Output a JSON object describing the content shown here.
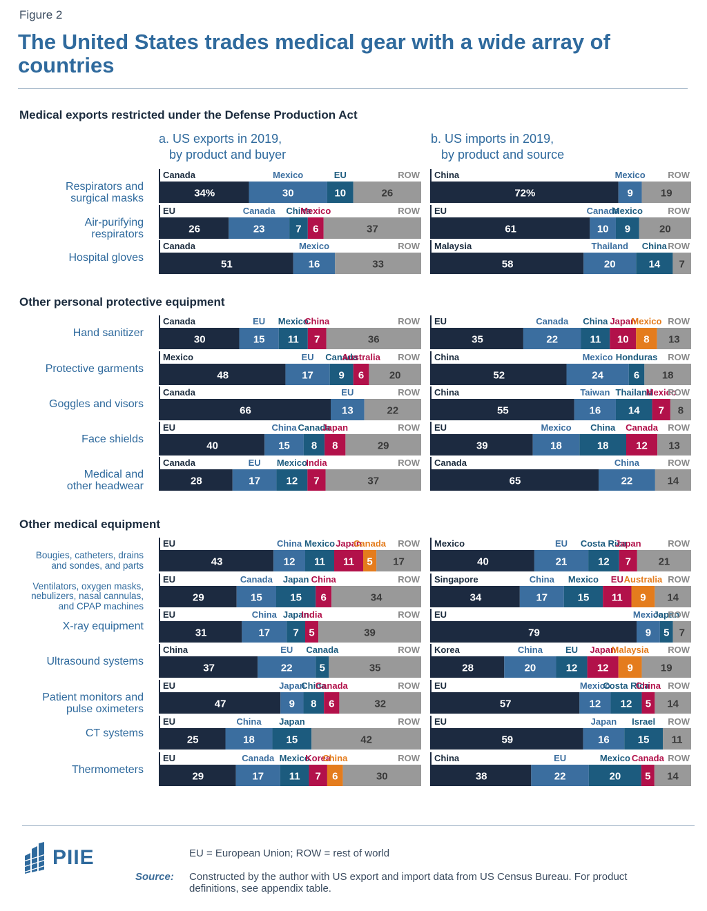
{
  "figure_label": "Figure 2",
  "title": "The United States trades medical gear with a wide array of countries",
  "note": "EU = European Union; ROW = rest of world",
  "source_label": "Source:",
  "source_text": "Constructed by the author with US export and import data from US Census Bureau. For product definitions, see appendix table.",
  "logo_text": "PIIE",
  "colors": {
    "navy": "#1c2a40",
    "blue": "#3b6e9f",
    "teal": "#1c5b7e",
    "crimson": "#b2114a",
    "orange": "#e47c1d",
    "gray": "#999999"
  },
  "chart_data": {
    "type": "bar",
    "orientation": "horizontal-stacked",
    "unit": "percent share",
    "panels": [
      {
        "title": "a. US exports in 2019,\n   by product and buyer"
      },
      {
        "title": "b. US imports in 2019,\n   by product and source"
      }
    ],
    "sections": [
      {
        "heading": "Medical exports restricted under the Defense Production Act",
        "rows": [
          {
            "label": "Respirators and\nsurgical masks",
            "exports": [
              {
                "c": "Canada",
                "v": 34,
                "t": "34%",
                "k": "navy"
              },
              {
                "c": "Mexico",
                "v": 30,
                "k": "blue"
              },
              {
                "c": "EU",
                "v": 10,
                "k": "teal"
              },
              {
                "c": "ROW",
                "v": 26,
                "k": "gray"
              }
            ],
            "imports": [
              {
                "c": "China",
                "v": 72,
                "t": "72%",
                "k": "navy"
              },
              {
                "c": "Mexico",
                "v": 9,
                "k": "blue"
              },
              {
                "c": "ROW",
                "v": 19,
                "k": "gray"
              }
            ]
          },
          {
            "label": "Air-purifying\nrespirators",
            "exports": [
              {
                "c": "EU",
                "v": 26,
                "k": "navy"
              },
              {
                "c": "Canada",
                "v": 23,
                "k": "blue"
              },
              {
                "c": "China",
                "v": 7,
                "k": "teal"
              },
              {
                "c": "Mexico",
                "v": 6,
                "k": "crimson"
              },
              {
                "c": "ROW",
                "v": 37,
                "k": "gray"
              }
            ],
            "imports": [
              {
                "c": "EU",
                "v": 61,
                "k": "navy"
              },
              {
                "c": "Canada",
                "v": 10,
                "k": "blue"
              },
              {
                "c": "Mexico",
                "v": 9,
                "k": "teal"
              },
              {
                "c": "ROW",
                "v": 20,
                "k": "gray"
              }
            ]
          },
          {
            "label": "Hospital gloves",
            "exports": [
              {
                "c": "Canada",
                "v": 51,
                "k": "navy"
              },
              {
                "c": "Mexico",
                "v": 16,
                "k": "blue"
              },
              {
                "c": "ROW",
                "v": 33,
                "k": "gray"
              }
            ],
            "imports": [
              {
                "c": "Malaysia",
                "v": 58,
                "k": "navy"
              },
              {
                "c": "Thailand",
                "v": 20,
                "k": "blue"
              },
              {
                "c": "China",
                "v": 14,
                "k": "teal"
              },
              {
                "c": "ROW",
                "v": 7,
                "k": "gray"
              }
            ]
          }
        ]
      },
      {
        "heading": "Other personal protective equipment",
        "rows": [
          {
            "label": "Hand sanitizer",
            "exports": [
              {
                "c": "Canada",
                "v": 30,
                "k": "navy"
              },
              {
                "c": "EU",
                "v": 15,
                "k": "blue"
              },
              {
                "c": "Mexico",
                "v": 11,
                "k": "teal"
              },
              {
                "c": "China",
                "v": 7,
                "k": "crimson"
              },
              {
                "c": "ROW",
                "v": 36,
                "k": "gray"
              }
            ],
            "imports": [
              {
                "c": "EU",
                "v": 35,
                "k": "navy"
              },
              {
                "c": "Canada",
                "v": 22,
                "k": "blue"
              },
              {
                "c": "China",
                "v": 11,
                "k": "teal"
              },
              {
                "c": "Japan",
                "v": 10,
                "k": "crimson"
              },
              {
                "c": "Mexico",
                "v": 8,
                "k": "orange"
              },
              {
                "c": "ROW",
                "v": 13,
                "k": "gray"
              }
            ]
          },
          {
            "label": "Protective garments",
            "exports": [
              {
                "c": "Mexico",
                "v": 48,
                "k": "navy"
              },
              {
                "c": "EU",
                "v": 17,
                "k": "blue"
              },
              {
                "c": "Canada",
                "v": 9,
                "k": "teal"
              },
              {
                "c": "Australia",
                "v": 6,
                "k": "crimson"
              },
              {
                "c": "ROW",
                "v": 20,
                "k": "gray"
              }
            ],
            "imports": [
              {
                "c": "China",
                "v": 52,
                "k": "navy"
              },
              {
                "c": "Mexico",
                "v": 24,
                "k": "blue"
              },
              {
                "c": "Honduras",
                "v": 6,
                "k": "teal"
              },
              {
                "c": "ROW",
                "v": 18,
                "k": "gray"
              }
            ]
          },
          {
            "label": "Goggles and visors",
            "exports": [
              {
                "c": "Canada",
                "v": 66,
                "k": "navy"
              },
              {
                "c": "EU",
                "v": 13,
                "k": "blue"
              },
              {
                "c": "ROW",
                "v": 22,
                "k": "gray"
              }
            ],
            "imports": [
              {
                "c": "China",
                "v": 55,
                "k": "navy"
              },
              {
                "c": "Taiwan",
                "v": 16,
                "k": "blue"
              },
              {
                "c": "Thailand",
                "v": 14,
                "k": "teal"
              },
              {
                "c": "Mexico",
                "v": 7,
                "k": "crimson"
              },
              {
                "c": "ROW",
                "v": 8,
                "k": "gray"
              }
            ]
          },
          {
            "label": "Face shields",
            "exports": [
              {
                "c": "EU",
                "v": 40,
                "k": "navy"
              },
              {
                "c": "China",
                "v": 15,
                "k": "blue"
              },
              {
                "c": "Canada",
                "v": 8,
                "k": "teal"
              },
              {
                "c": "Japan",
                "v": 8,
                "k": "crimson"
              },
              {
                "c": "ROW",
                "v": 29,
                "k": "gray"
              }
            ],
            "imports": [
              {
                "c": "EU",
                "v": 39,
                "k": "navy"
              },
              {
                "c": "Mexico",
                "v": 18,
                "k": "blue"
              },
              {
                "c": "China",
                "v": 18,
                "k": "teal"
              },
              {
                "c": "Canada",
                "v": 12,
                "k": "crimson"
              },
              {
                "c": "ROW",
                "v": 13,
                "k": "gray"
              }
            ]
          },
          {
            "label": "Medical and\nother headwear",
            "exports": [
              {
                "c": "Canada",
                "v": 28,
                "k": "navy"
              },
              {
                "c": "EU",
                "v": 17,
                "k": "blue"
              },
              {
                "c": "Mexico",
                "v": 12,
                "k": "teal"
              },
              {
                "c": "India",
                "v": 7,
                "k": "crimson"
              },
              {
                "c": "ROW",
                "v": 37,
                "k": "gray"
              }
            ],
            "imports": [
              {
                "c": "Canada",
                "v": 65,
                "k": "navy"
              },
              {
                "c": "China",
                "v": 22,
                "k": "blue"
              },
              {
                "c": "ROW",
                "v": 14,
                "k": "gray"
              }
            ]
          }
        ]
      },
      {
        "heading": "Other medical equipment",
        "rows": [
          {
            "label": "Bougies, catheters, drains\nand sondes, and parts",
            "small": true,
            "exports": [
              {
                "c": "EU",
                "v": 43,
                "k": "navy"
              },
              {
                "c": "China",
                "v": 12,
                "k": "blue"
              },
              {
                "c": "Mexico",
                "v": 11,
                "k": "teal"
              },
              {
                "c": "Japan",
                "v": 11,
                "k": "crimson"
              },
              {
                "c": "Canada",
                "v": 5,
                "k": "orange"
              },
              {
                "c": "ROW",
                "v": 17,
                "k": "gray"
              }
            ],
            "imports": [
              {
                "c": "Mexico",
                "v": 40,
                "k": "navy"
              },
              {
                "c": "EU",
                "v": 21,
                "k": "blue"
              },
              {
                "c": "Costa Rica",
                "v": 12,
                "k": "teal"
              },
              {
                "c": "Japan",
                "v": 7,
                "k": "crimson"
              },
              {
                "c": "ROW",
                "v": 21,
                "k": "gray"
              }
            ]
          },
          {
            "label": "Ventilators, oxygen masks,\nnebulizers, nasal cannulas,\nand CPAP machines",
            "small": true,
            "exports": [
              {
                "c": "EU",
                "v": 29,
                "k": "navy"
              },
              {
                "c": "Canada",
                "v": 15,
                "k": "blue"
              },
              {
                "c": "Japan",
                "v": 15,
                "k": "teal"
              },
              {
                "c": "China",
                "v": 6,
                "k": "crimson"
              },
              {
                "c": "ROW",
                "v": 34,
                "k": "gray"
              }
            ],
            "imports": [
              {
                "c": "Singapore",
                "v": 34,
                "k": "navy"
              },
              {
                "c": "China",
                "v": 17,
                "k": "blue"
              },
              {
                "c": "Mexico",
                "v": 15,
                "k": "teal"
              },
              {
                "c": "EU",
                "v": 11,
                "k": "crimson"
              },
              {
                "c": "Australia",
                "v": 9,
                "k": "orange"
              },
              {
                "c": "ROW",
                "v": 14,
                "k": "gray"
              }
            ]
          },
          {
            "label": "X-ray equipment",
            "exports": [
              {
                "c": "EU",
                "v": 31,
                "k": "navy"
              },
              {
                "c": "China",
                "v": 17,
                "k": "blue"
              },
              {
                "c": "Japan",
                "v": 7,
                "k": "teal"
              },
              {
                "c": "India",
                "v": 5,
                "k": "crimson"
              },
              {
                "c": "ROW",
                "v": 39,
                "k": "gray"
              }
            ],
            "imports": [
              {
                "c": "EU",
                "v": 79,
                "k": "navy"
              },
              {
                "c": "Mexico",
                "v": 9,
                "k": "blue"
              },
              {
                "c": "Japan",
                "v": 5,
                "k": "teal"
              },
              {
                "c": "ROW",
                "v": 7,
                "k": "gray"
              }
            ]
          },
          {
            "label": "Ultrasound systems",
            "exports": [
              {
                "c": "China",
                "v": 37,
                "k": "navy"
              },
              {
                "c": "EU",
                "v": 22,
                "k": "blue"
              },
              {
                "c": "Canada",
                "v": 5,
                "k": "teal"
              },
              {
                "c": "ROW",
                "v": 35,
                "k": "gray"
              }
            ],
            "imports": [
              {
                "c": "Korea",
                "v": 28,
                "k": "navy"
              },
              {
                "c": "China",
                "v": 20,
                "k": "blue"
              },
              {
                "c": "EU",
                "v": 12,
                "k": "teal"
              },
              {
                "c": "Japan",
                "v": 12,
                "k": "crimson"
              },
              {
                "c": "Malaysia",
                "v": 9,
                "k": "orange"
              },
              {
                "c": "ROW",
                "v": 19,
                "k": "gray"
              }
            ]
          },
          {
            "label": "Patient monitors and\npulse oximeters",
            "exports": [
              {
                "c": "EU",
                "v": 47,
                "k": "navy"
              },
              {
                "c": "Japan",
                "v": 9,
                "k": "blue"
              },
              {
                "c": "China",
                "v": 8,
                "k": "teal"
              },
              {
                "c": "Canada",
                "v": 6,
                "k": "crimson"
              },
              {
                "c": "ROW",
                "v": 32,
                "k": "gray"
              }
            ],
            "imports": [
              {
                "c": "EU",
                "v": 57,
                "k": "navy"
              },
              {
                "c": "Mexico",
                "v": 12,
                "k": "blue"
              },
              {
                "c": "Costa Rica",
                "v": 12,
                "k": "teal"
              },
              {
                "c": "China",
                "v": 5,
                "k": "crimson"
              },
              {
                "c": "ROW",
                "v": 14,
                "k": "gray"
              }
            ]
          },
          {
            "label": "CT systems",
            "exports": [
              {
                "c": "EU",
                "v": 25,
                "k": "navy"
              },
              {
                "c": "China",
                "v": 18,
                "k": "blue"
              },
              {
                "c": "Japan",
                "v": 15,
                "k": "teal"
              },
              {
                "c": "ROW",
                "v": 42,
                "k": "gray"
              }
            ],
            "imports": [
              {
                "c": "EU",
                "v": 59,
                "k": "navy"
              },
              {
                "c": "Japan",
                "v": 16,
                "k": "blue"
              },
              {
                "c": "Israel",
                "v": 15,
                "k": "teal"
              },
              {
                "c": "ROW",
                "v": 11,
                "k": "gray"
              }
            ]
          },
          {
            "label": "Thermometers",
            "exports": [
              {
                "c": "EU",
                "v": 29,
                "k": "navy"
              },
              {
                "c": "Canada",
                "v": 17,
                "k": "blue"
              },
              {
                "c": "Mexico",
                "v": 11,
                "k": "teal"
              },
              {
                "c": "Korea",
                "v": 7,
                "k": "crimson"
              },
              {
                "c": "China",
                "v": 6,
                "k": "orange"
              },
              {
                "c": "ROW",
                "v": 30,
                "k": "gray"
              }
            ],
            "imports": [
              {
                "c": "China",
                "v": 38,
                "k": "navy"
              },
              {
                "c": "EU",
                "v": 22,
                "k": "blue"
              },
              {
                "c": "Mexico",
                "v": 20,
                "k": "teal"
              },
              {
                "c": "Canada",
                "v": 5,
                "k": "crimson"
              },
              {
                "c": "ROW",
                "v": 14,
                "k": "gray"
              }
            ]
          }
        ]
      }
    ]
  }
}
